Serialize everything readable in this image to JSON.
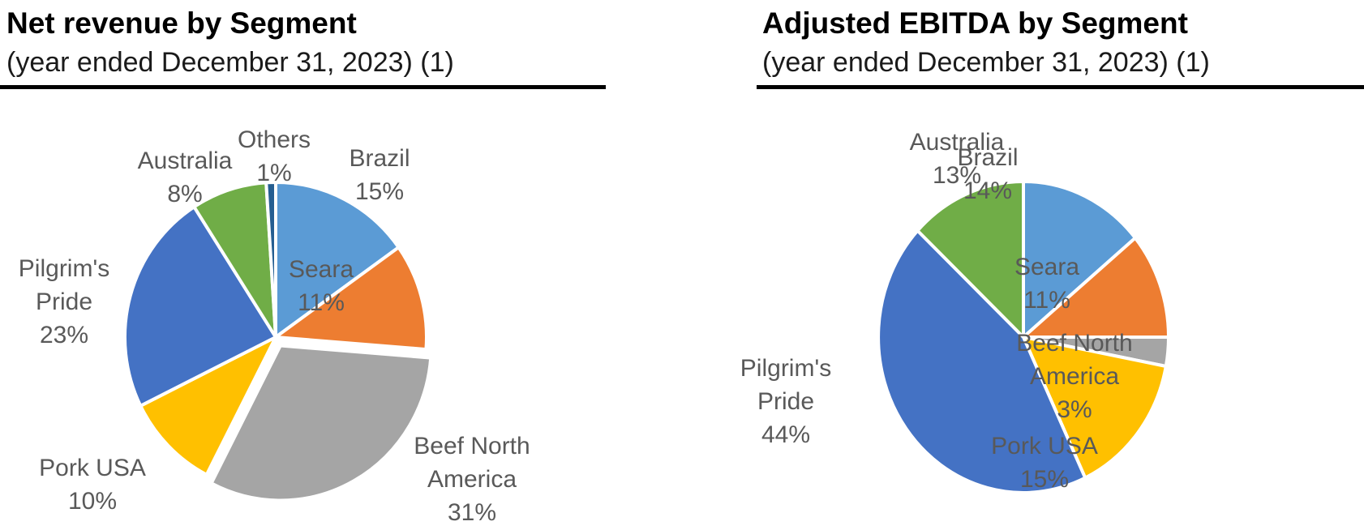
{
  "page": {
    "background": "#ffffff",
    "label_color": "#595959",
    "title_color": "#000000"
  },
  "chart_data": [
    {
      "type": "pie",
      "title": "Net revenue by Segment",
      "subtitle": "(year ended December 31, 2023) (1)",
      "unit": "%",
      "start_angle_deg": 0,
      "direction": "clockwise",
      "labels_position": "outside",
      "legend": "none",
      "segments": [
        "Brazil",
        "Seara",
        "Beef North America",
        "Pork USA",
        "Pilgrim's Pride",
        "Australia",
        "Others"
      ],
      "values": [
        15,
        11,
        31,
        10,
        23,
        8,
        1
      ],
      "colors": [
        "#5B9BD5",
        "#ED7D31",
        "#A5A5A5",
        "#FFC000",
        "#4472C4",
        "#70AD47",
        "#255E91"
      ]
    },
    {
      "type": "pie",
      "title": "Adjusted EBITDA by Segment",
      "subtitle": "(year ended December 31, 2023) (1)",
      "unit": "%",
      "start_angle_deg": 0,
      "direction": "clockwise",
      "labels_position": "outside",
      "legend": "none",
      "segments": [
        "Brazil",
        "Seara",
        "Beef North America",
        "Pork USA",
        "Pilgrim's Pride",
        "Australia"
      ],
      "values": [
        14,
        11,
        3,
        15,
        44,
        13
      ],
      "colors": [
        "#5B9BD5",
        "#ED7D31",
        "#A5A5A5",
        "#FFC000",
        "#4472C4",
        "#70AD47"
      ]
    }
  ]
}
